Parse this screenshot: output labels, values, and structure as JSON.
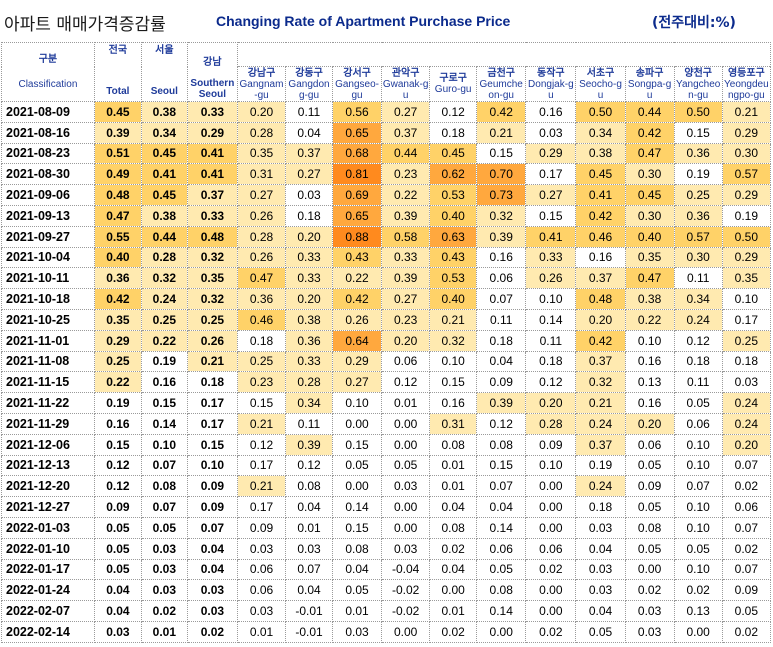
{
  "header": {
    "title_ko": "아파트 매매가격증감률",
    "title_en": "Changing Rate of Apartment Purchase Price",
    "unit": "(전주대비:%)"
  },
  "columns": {
    "classification": {
      "ko": "구분",
      "en": "Classification"
    },
    "total": {
      "ko": "전국",
      "en": "Total"
    },
    "seoul": {
      "ko": "서울",
      "en": "Seoul"
    },
    "southern": {
      "ko": "강남",
      "en": "Southern Seoul"
    },
    "districts": [
      {
        "ko": "강남구",
        "en": "Gangnam-gu"
      },
      {
        "ko": "강동구",
        "en": "Gangdong-gu"
      },
      {
        "ko": "강서구",
        "en": "Gangseo-gu"
      },
      {
        "ko": "관악구",
        "en": "Gwanak-gu"
      },
      {
        "ko": "구로구",
        "en": "Guro-gu"
      },
      {
        "ko": "금천구",
        "en": "Geumcheon-gu"
      },
      {
        "ko": "동작구",
        "en": "Dongjak-gu"
      },
      {
        "ko": "서초구",
        "en": "Seocho-gu"
      },
      {
        "ko": "송파구",
        "en": "Songpa-gu"
      },
      {
        "ko": "양천구",
        "en": "Yangcheon-gu"
      },
      {
        "ko": "영등포구",
        "en": "Yeongdeungpo-gu"
      }
    ]
  },
  "chart_data": {
    "type": "table",
    "title": "아파트 매매가격증감률 Changing Rate of Apartment Purchase Price",
    "unit": "(전주대비:%)",
    "headers": [
      "Classification",
      "Total",
      "Seoul",
      "Southern Seoul",
      "Gangnam-gu",
      "Gangdong-gu",
      "Gangseo-gu",
      "Gwanak-gu",
      "Guro-gu",
      "Geumcheon-gu",
      "Dongjak-gu",
      "Seocho-gu",
      "Songpa-gu",
      "Yangcheon-gu",
      "Yeongdeungpo-gu"
    ],
    "rows": [
      {
        "date": "2021-08-09",
        "values": [
          "0.45",
          "0.38",
          "0.33",
          "0.20",
          "0.11",
          "0.56",
          "0.27",
          "0.12",
          "0.42",
          "0.16",
          "0.50",
          "0.44",
          "0.50",
          "0.21"
        ]
      },
      {
        "date": "2021-08-16",
        "values": [
          "0.39",
          "0.34",
          "0.29",
          "0.28",
          "0.04",
          "0.65",
          "0.37",
          "0.18",
          "0.21",
          "0.03",
          "0.34",
          "0.42",
          "0.15",
          "0.29"
        ]
      },
      {
        "date": "2021-08-23",
        "values": [
          "0.51",
          "0.45",
          "0.41",
          "0.35",
          "0.37",
          "0.68",
          "0.44",
          "0.45",
          "0.15",
          "0.29",
          "0.38",
          "0.47",
          "0.36",
          "0.30"
        ]
      },
      {
        "date": "2021-08-30",
        "values": [
          "0.49",
          "0.41",
          "0.41",
          "0.31",
          "0.27",
          "0.81",
          "0.23",
          "0.62",
          "0.70",
          "0.17",
          "0.45",
          "0.30",
          "0.19",
          "0.57"
        ]
      },
      {
        "date": "2021-09-06",
        "values": [
          "0.48",
          "0.45",
          "0.37",
          "0.27",
          "0.03",
          "0.69",
          "0.22",
          "0.53",
          "0.73",
          "0.27",
          "0.41",
          "0.45",
          "0.25",
          "0.29"
        ]
      },
      {
        "date": "2021-09-13",
        "values": [
          "0.47",
          "0.38",
          "0.33",
          "0.26",
          "0.18",
          "0.65",
          "0.39",
          "0.40",
          "0.32",
          "0.15",
          "0.42",
          "0.30",
          "0.36",
          "0.19"
        ]
      },
      {
        "date": "2021-09-27",
        "values": [
          "0.55",
          "0.44",
          "0.48",
          "0.28",
          "0.20",
          "0.88",
          "0.58",
          "0.63",
          "0.39",
          "0.41",
          "0.46",
          "0.40",
          "0.57",
          "0.50"
        ]
      },
      {
        "date": "2021-10-04",
        "values": [
          "0.40",
          "0.28",
          "0.32",
          "0.26",
          "0.33",
          "0.43",
          "0.33",
          "0.43",
          "0.16",
          "0.33",
          "0.16",
          "0.35",
          "0.30",
          "0.29"
        ]
      },
      {
        "date": "2021-10-11",
        "values": [
          "0.36",
          "0.32",
          "0.35",
          "0.47",
          "0.33",
          "0.22",
          "0.39",
          "0.53",
          "0.06",
          "0.26",
          "0.37",
          "0.47",
          "0.11",
          "0.35"
        ]
      },
      {
        "date": "2021-10-18",
        "values": [
          "0.42",
          "0.24",
          "0.32",
          "0.36",
          "0.20",
          "0.42",
          "0.27",
          "0.40",
          "0.07",
          "0.10",
          "0.48",
          "0.38",
          "0.34",
          "0.10"
        ]
      },
      {
        "date": "2021-10-25",
        "values": [
          "0.35",
          "0.25",
          "0.25",
          "0.46",
          "0.38",
          "0.26",
          "0.23",
          "0.21",
          "0.11",
          "0.14",
          "0.20",
          "0.22",
          "0.24",
          "0.17"
        ]
      },
      {
        "date": "2021-11-01",
        "values": [
          "0.29",
          "0.22",
          "0.26",
          "0.18",
          "0.36",
          "0.64",
          "0.20",
          "0.32",
          "0.18",
          "0.11",
          "0.42",
          "0.10",
          "0.12",
          "0.25"
        ]
      },
      {
        "date": "2021-11-08",
        "values": [
          "0.25",
          "0.19",
          "0.21",
          "0.25",
          "0.33",
          "0.29",
          "0.06",
          "0.10",
          "0.04",
          "0.18",
          "0.37",
          "0.16",
          "0.18",
          "0.18"
        ]
      },
      {
        "date": "2021-11-15",
        "values": [
          "0.22",
          "0.16",
          "0.18",
          "0.23",
          "0.28",
          "0.27",
          "0.12",
          "0.15",
          "0.09",
          "0.12",
          "0.32",
          "0.13",
          "0.11",
          "0.03"
        ]
      },
      {
        "date": "2021-11-22",
        "values": [
          "0.19",
          "0.15",
          "0.17",
          "0.15",
          "0.34",
          "0.10",
          "0.01",
          "0.16",
          "0.39",
          "0.20",
          "0.21",
          "0.16",
          "0.05",
          "0.24"
        ]
      },
      {
        "date": "2021-11-29",
        "values": [
          "0.16",
          "0.14",
          "0.17",
          "0.21",
          "0.11",
          "0.00",
          "0.00",
          "0.31",
          "0.12",
          "0.28",
          "0.24",
          "0.20",
          "0.06",
          "0.24"
        ]
      },
      {
        "date": "2021-12-06",
        "values": [
          "0.15",
          "0.10",
          "0.15",
          "0.12",
          "0.39",
          "0.15",
          "0.00",
          "0.08",
          "0.08",
          "0.09",
          "0.37",
          "0.06",
          "0.10",
          "0.20"
        ]
      },
      {
        "date": "2021-12-13",
        "values": [
          "0.12",
          "0.07",
          "0.10",
          "0.17",
          "0.12",
          "0.05",
          "0.05",
          "0.01",
          "0.15",
          "0.10",
          "0.19",
          "0.05",
          "0.10",
          "0.07"
        ]
      },
      {
        "date": "2021-12-20",
        "values": [
          "0.12",
          "0.08",
          "0.09",
          "0.21",
          "0.08",
          "0.00",
          "0.03",
          "0.01",
          "0.07",
          "0.00",
          "0.24",
          "0.09",
          "0.07",
          "0.02"
        ]
      },
      {
        "date": "2021-12-27",
        "values": [
          "0.09",
          "0.07",
          "0.09",
          "0.17",
          "0.04",
          "0.14",
          "0.00",
          "0.04",
          "0.04",
          "0.00",
          "0.18",
          "0.05",
          "0.10",
          "0.06"
        ]
      },
      {
        "date": "2022-01-03",
        "values": [
          "0.05",
          "0.05",
          "0.07",
          "0.09",
          "0.01",
          "0.15",
          "0.00",
          "0.08",
          "0.14",
          "0.00",
          "0.03",
          "0.08",
          "0.10",
          "0.07"
        ]
      },
      {
        "date": "2022-01-10",
        "values": [
          "0.05",
          "0.03",
          "0.04",
          "0.03",
          "0.03",
          "0.08",
          "0.03",
          "0.02",
          "0.06",
          "0.06",
          "0.04",
          "0.05",
          "0.05",
          "0.02"
        ]
      },
      {
        "date": "2022-01-17",
        "values": [
          "0.05",
          "0.03",
          "0.04",
          "0.06",
          "0.07",
          "0.04",
          "-0.04",
          "0.04",
          "0.05",
          "0.02",
          "0.03",
          "0.00",
          "0.10",
          "0.07"
        ]
      },
      {
        "date": "2022-01-24",
        "values": [
          "0.04",
          "0.03",
          "0.03",
          "0.06",
          "0.04",
          "0.05",
          "-0.02",
          "0.00",
          "0.08",
          "0.00",
          "0.03",
          "0.02",
          "0.02",
          "0.09"
        ]
      },
      {
        "date": "2022-02-07",
        "values": [
          "0.04",
          "0.02",
          "0.03",
          "0.03",
          "-0.01",
          "0.01",
          "-0.02",
          "0.01",
          "0.14",
          "0.00",
          "0.04",
          "0.03",
          "0.13",
          "0.05"
        ]
      },
      {
        "date": "2022-02-14",
        "values": [
          "0.03",
          "0.01",
          "0.02",
          "0.01",
          "-0.01",
          "0.03",
          "0.00",
          "0.02",
          "0.00",
          "0.02",
          "0.05",
          "0.03",
          "0.00",
          "0.02"
        ]
      }
    ],
    "color_scale": {
      "low": "#ffffff",
      "light": "#ffeab0",
      "mid": "#ffd268",
      "high": "#ffa83e",
      "max": "#ff8a1e"
    }
  }
}
